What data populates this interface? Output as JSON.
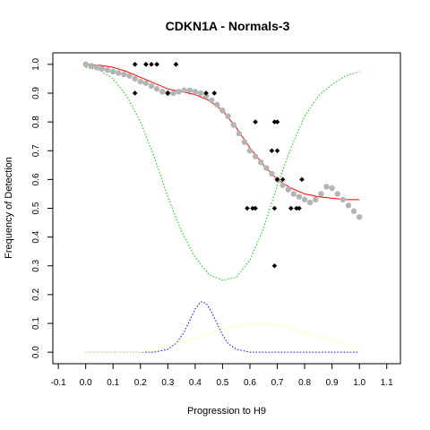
{
  "chart_data": {
    "type": "scatter",
    "title": "CDKN1A - Normals-3",
    "xlabel": "Progression to H9",
    "ylabel": "Frequency of Detection",
    "xlim": [
      -0.12,
      1.15
    ],
    "ylim": [
      -0.04,
      1.04
    ],
    "xticks": [
      "-0.1",
      "0.0",
      "0.1",
      "0.2",
      "0.3",
      "0.4",
      "0.5",
      "0.6",
      "0.7",
      "0.8",
      "0.9",
      "1.0",
      "1.1"
    ],
    "yticks": [
      "0.0",
      "0.1",
      "0.2",
      "0.3",
      "0.4",
      "0.5",
      "0.6",
      "0.7",
      "0.8",
      "0.9",
      "1.0"
    ],
    "grid": false,
    "observed_points": {
      "color": "#000000",
      "points": [
        [
          0.18,
          1.0
        ],
        [
          0.22,
          1.0
        ],
        [
          0.24,
          1.0
        ],
        [
          0.26,
          1.0
        ],
        [
          0.33,
          1.0
        ],
        [
          0.18,
          0.9
        ],
        [
          0.3,
          0.9
        ],
        [
          0.44,
          0.9
        ],
        [
          0.47,
          0.9
        ],
        [
          0.62,
          0.8
        ],
        [
          0.69,
          0.8
        ],
        [
          0.7,
          0.8
        ],
        [
          0.68,
          0.7
        ],
        [
          0.7,
          0.7
        ],
        [
          0.7,
          0.6
        ],
        [
          0.72,
          0.6
        ],
        [
          0.79,
          0.6
        ],
        [
          0.59,
          0.5
        ],
        [
          0.61,
          0.5
        ],
        [
          0.62,
          0.5
        ],
        [
          0.69,
          0.5
        ],
        [
          0.75,
          0.5
        ],
        [
          0.77,
          0.5
        ],
        [
          0.78,
          0.5
        ],
        [
          0.69,
          0.3
        ]
      ]
    },
    "smoothed_points": {
      "color": "#b4b4b4",
      "points": [
        [
          0.0,
          1.0
        ],
        [
          0.02,
          0.995
        ],
        [
          0.04,
          0.99
        ],
        [
          0.06,
          0.985
        ],
        [
          0.08,
          0.98
        ],
        [
          0.1,
          0.975
        ],
        [
          0.12,
          0.97
        ],
        [
          0.14,
          0.965
        ],
        [
          0.16,
          0.96
        ],
        [
          0.18,
          0.95
        ],
        [
          0.2,
          0.94
        ],
        [
          0.22,
          0.935
        ],
        [
          0.24,
          0.925
        ],
        [
          0.26,
          0.915
        ],
        [
          0.28,
          0.905
        ],
        [
          0.3,
          0.9
        ],
        [
          0.32,
          0.9
        ],
        [
          0.34,
          0.905
        ],
        [
          0.36,
          0.91
        ],
        [
          0.38,
          0.91
        ],
        [
          0.4,
          0.905
        ],
        [
          0.42,
          0.9
        ],
        [
          0.44,
          0.89
        ],
        [
          0.46,
          0.875
        ],
        [
          0.48,
          0.86
        ],
        [
          0.5,
          0.84
        ],
        [
          0.52,
          0.82
        ],
        [
          0.54,
          0.79
        ],
        [
          0.56,
          0.76
        ],
        [
          0.58,
          0.73
        ],
        [
          0.6,
          0.7
        ],
        [
          0.62,
          0.68
        ],
        [
          0.64,
          0.66
        ],
        [
          0.66,
          0.64
        ],
        [
          0.68,
          0.62
        ],
        [
          0.7,
          0.6
        ],
        [
          0.72,
          0.58
        ],
        [
          0.74,
          0.565
        ],
        [
          0.76,
          0.55
        ],
        [
          0.78,
          0.54
        ],
        [
          0.8,
          0.53
        ],
        [
          0.82,
          0.52
        ],
        [
          0.84,
          0.53
        ],
        [
          0.86,
          0.55
        ],
        [
          0.88,
          0.575
        ],
        [
          0.9,
          0.57
        ],
        [
          0.92,
          0.55
        ],
        [
          0.94,
          0.53
        ],
        [
          0.96,
          0.51
        ],
        [
          0.98,
          0.49
        ],
        [
          1.0,
          0.47
        ]
      ]
    },
    "series": [
      {
        "style": "solid",
        "color": "#ff0000",
        "x": [
          0.0,
          0.05,
          0.1,
          0.15,
          0.2,
          0.25,
          0.3,
          0.35,
          0.4,
          0.45,
          0.5,
          0.55,
          0.6,
          0.65,
          0.7,
          0.75,
          0.8,
          0.85,
          0.9,
          0.95,
          1.0
        ],
        "y": [
          1.0,
          0.997,
          0.99,
          0.975,
          0.955,
          0.935,
          0.915,
          0.905,
          0.895,
          0.875,
          0.84,
          0.78,
          0.71,
          0.65,
          0.6,
          0.57,
          0.55,
          0.54,
          0.535,
          0.53,
          0.53
        ]
      },
      {
        "style": "dotted",
        "color": "#00cc00",
        "x": [
          0.0,
          0.05,
          0.1,
          0.15,
          0.2,
          0.25,
          0.3,
          0.35,
          0.4,
          0.45,
          0.5,
          0.55,
          0.6,
          0.65,
          0.7,
          0.75,
          0.8,
          0.85,
          0.9,
          0.95,
          1.0
        ],
        "y": [
          0.99,
          0.98,
          0.95,
          0.89,
          0.8,
          0.68,
          0.54,
          0.42,
          0.33,
          0.27,
          0.25,
          0.26,
          0.32,
          0.43,
          0.58,
          0.71,
          0.82,
          0.89,
          0.93,
          0.96,
          0.975
        ]
      },
      {
        "style": "dotted",
        "color": "#0000ff",
        "x": [
          0.0,
          0.25,
          0.3,
          0.33,
          0.36,
          0.38,
          0.4,
          0.42,
          0.44,
          0.46,
          0.48,
          0.5,
          0.52,
          0.55,
          0.6,
          1.0
        ],
        "y": [
          0.0,
          0.0,
          0.01,
          0.03,
          0.07,
          0.11,
          0.15,
          0.175,
          0.17,
          0.14,
          0.1,
          0.06,
          0.03,
          0.01,
          0.0,
          0.0
        ]
      },
      {
        "style": "dotted",
        "color": "#ffff66",
        "x": [
          0.0,
          0.2,
          0.3,
          0.4,
          0.5,
          0.55,
          0.6,
          0.65,
          0.7,
          0.8,
          0.9,
          1.0
        ],
        "y": [
          0.0,
          0.0,
          0.02,
          0.05,
          0.08,
          0.09,
          0.1,
          0.1,
          0.095,
          0.07,
          0.04,
          0.015
        ]
      }
    ]
  }
}
